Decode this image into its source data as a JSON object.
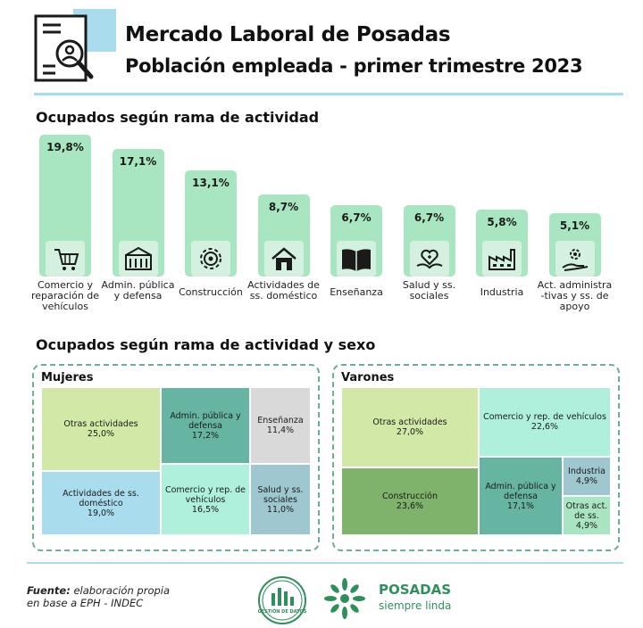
{
  "header": {
    "title": "Mercado Laboral de Posadas",
    "subtitle": "Población empleada - primer trimestre 2023"
  },
  "section1_title": "Ocupados según rama de actividad",
  "section2_title": "Ocupados según rama de actividad y sexo",
  "colors": {
    "bar": "#a8e6c2",
    "icon_bg": "#d4f0df",
    "accent_blue": "#a9dcec",
    "brand_green": "#2f8f5b"
  },
  "chart_data": [
    {
      "type": "bar",
      "title": "Ocupados según rama de actividad",
      "categories": [
        "Comercio y reparación de vehículos",
        "Admin. pública y defensa",
        "Construcción",
        "Actividades de ss. doméstico",
        "Enseñanza",
        "Salud y ss. sociales",
        "Industria",
        "Act. administra -tivas y ss. de apoyo"
      ],
      "values": [
        19.8,
        17.1,
        13.1,
        8.7,
        6.7,
        6.7,
        5.8,
        5.1
      ],
      "value_labels": [
        "19,8%",
        "17,1%",
        "13,1%",
        "8,7%",
        "6,7%",
        "6,7%",
        "5,8%",
        "5,1%"
      ],
      "icons": [
        "cart-icon",
        "government-building-icon",
        "gear-icon",
        "house-icon",
        "book-icon",
        "heart-hand-icon",
        "factory-icon",
        "hand-gear-icon"
      ],
      "unit": "%"
    },
    {
      "type": "treemap",
      "title": "Mujeres",
      "cells": [
        {
          "label": "Otras actividades",
          "value": 25.0,
          "value_label": "25,0%",
          "color": "#d2e8a6"
        },
        {
          "label": "Actividades de ss. doméstico",
          "value": 19.0,
          "value_label": "19,0%",
          "color": "#a9dcec"
        },
        {
          "label": "Admin. pública y defensa",
          "value": 17.2,
          "value_label": "17,2%",
          "color": "#66b5a3"
        },
        {
          "label": "Comercio y rep. de vehículos",
          "value": 16.5,
          "value_label": "16,5%",
          "color": "#aef0dc"
        },
        {
          "label": "Enseñanza",
          "value": 11.4,
          "value_label": "11,4%",
          "color": "#d9d9d9"
        },
        {
          "label": "Salud y ss. sociales",
          "value": 11.0,
          "value_label": "11,0%",
          "color": "#9fc7cf"
        }
      ]
    },
    {
      "type": "treemap",
      "title": "Varones",
      "cells": [
        {
          "label": "Otras actividades",
          "value": 27.0,
          "value_label": "27,0%",
          "color": "#d2e8a6"
        },
        {
          "label": "Construcción",
          "value": 23.6,
          "value_label": "23,6%",
          "color": "#7fb26a"
        },
        {
          "label": "Comercio y rep. de vehículos",
          "value": 22.6,
          "value_label": "22,6%",
          "color": "#aef0dc"
        },
        {
          "label": "Admin. pública y defensa",
          "value": 17.1,
          "value_label": "17,1%",
          "color": "#66b5a3"
        },
        {
          "label": "Industria",
          "value": 4.9,
          "value_label": "4,9%",
          "color": "#9fc7cf"
        },
        {
          "label": "Otras act. de ss.",
          "value": 4.9,
          "value_label": "4,9%",
          "color": "#a8e6c2"
        }
      ]
    }
  ],
  "footer": {
    "source_label": "Fuente:",
    "source_text": " elaboración propia",
    "source_text2": "en base a EPH - INDEC",
    "logo1_text": "GESTIÓN DE DATOS",
    "logo2_name": "POSADAS",
    "logo2_sub": "siempre linda"
  }
}
